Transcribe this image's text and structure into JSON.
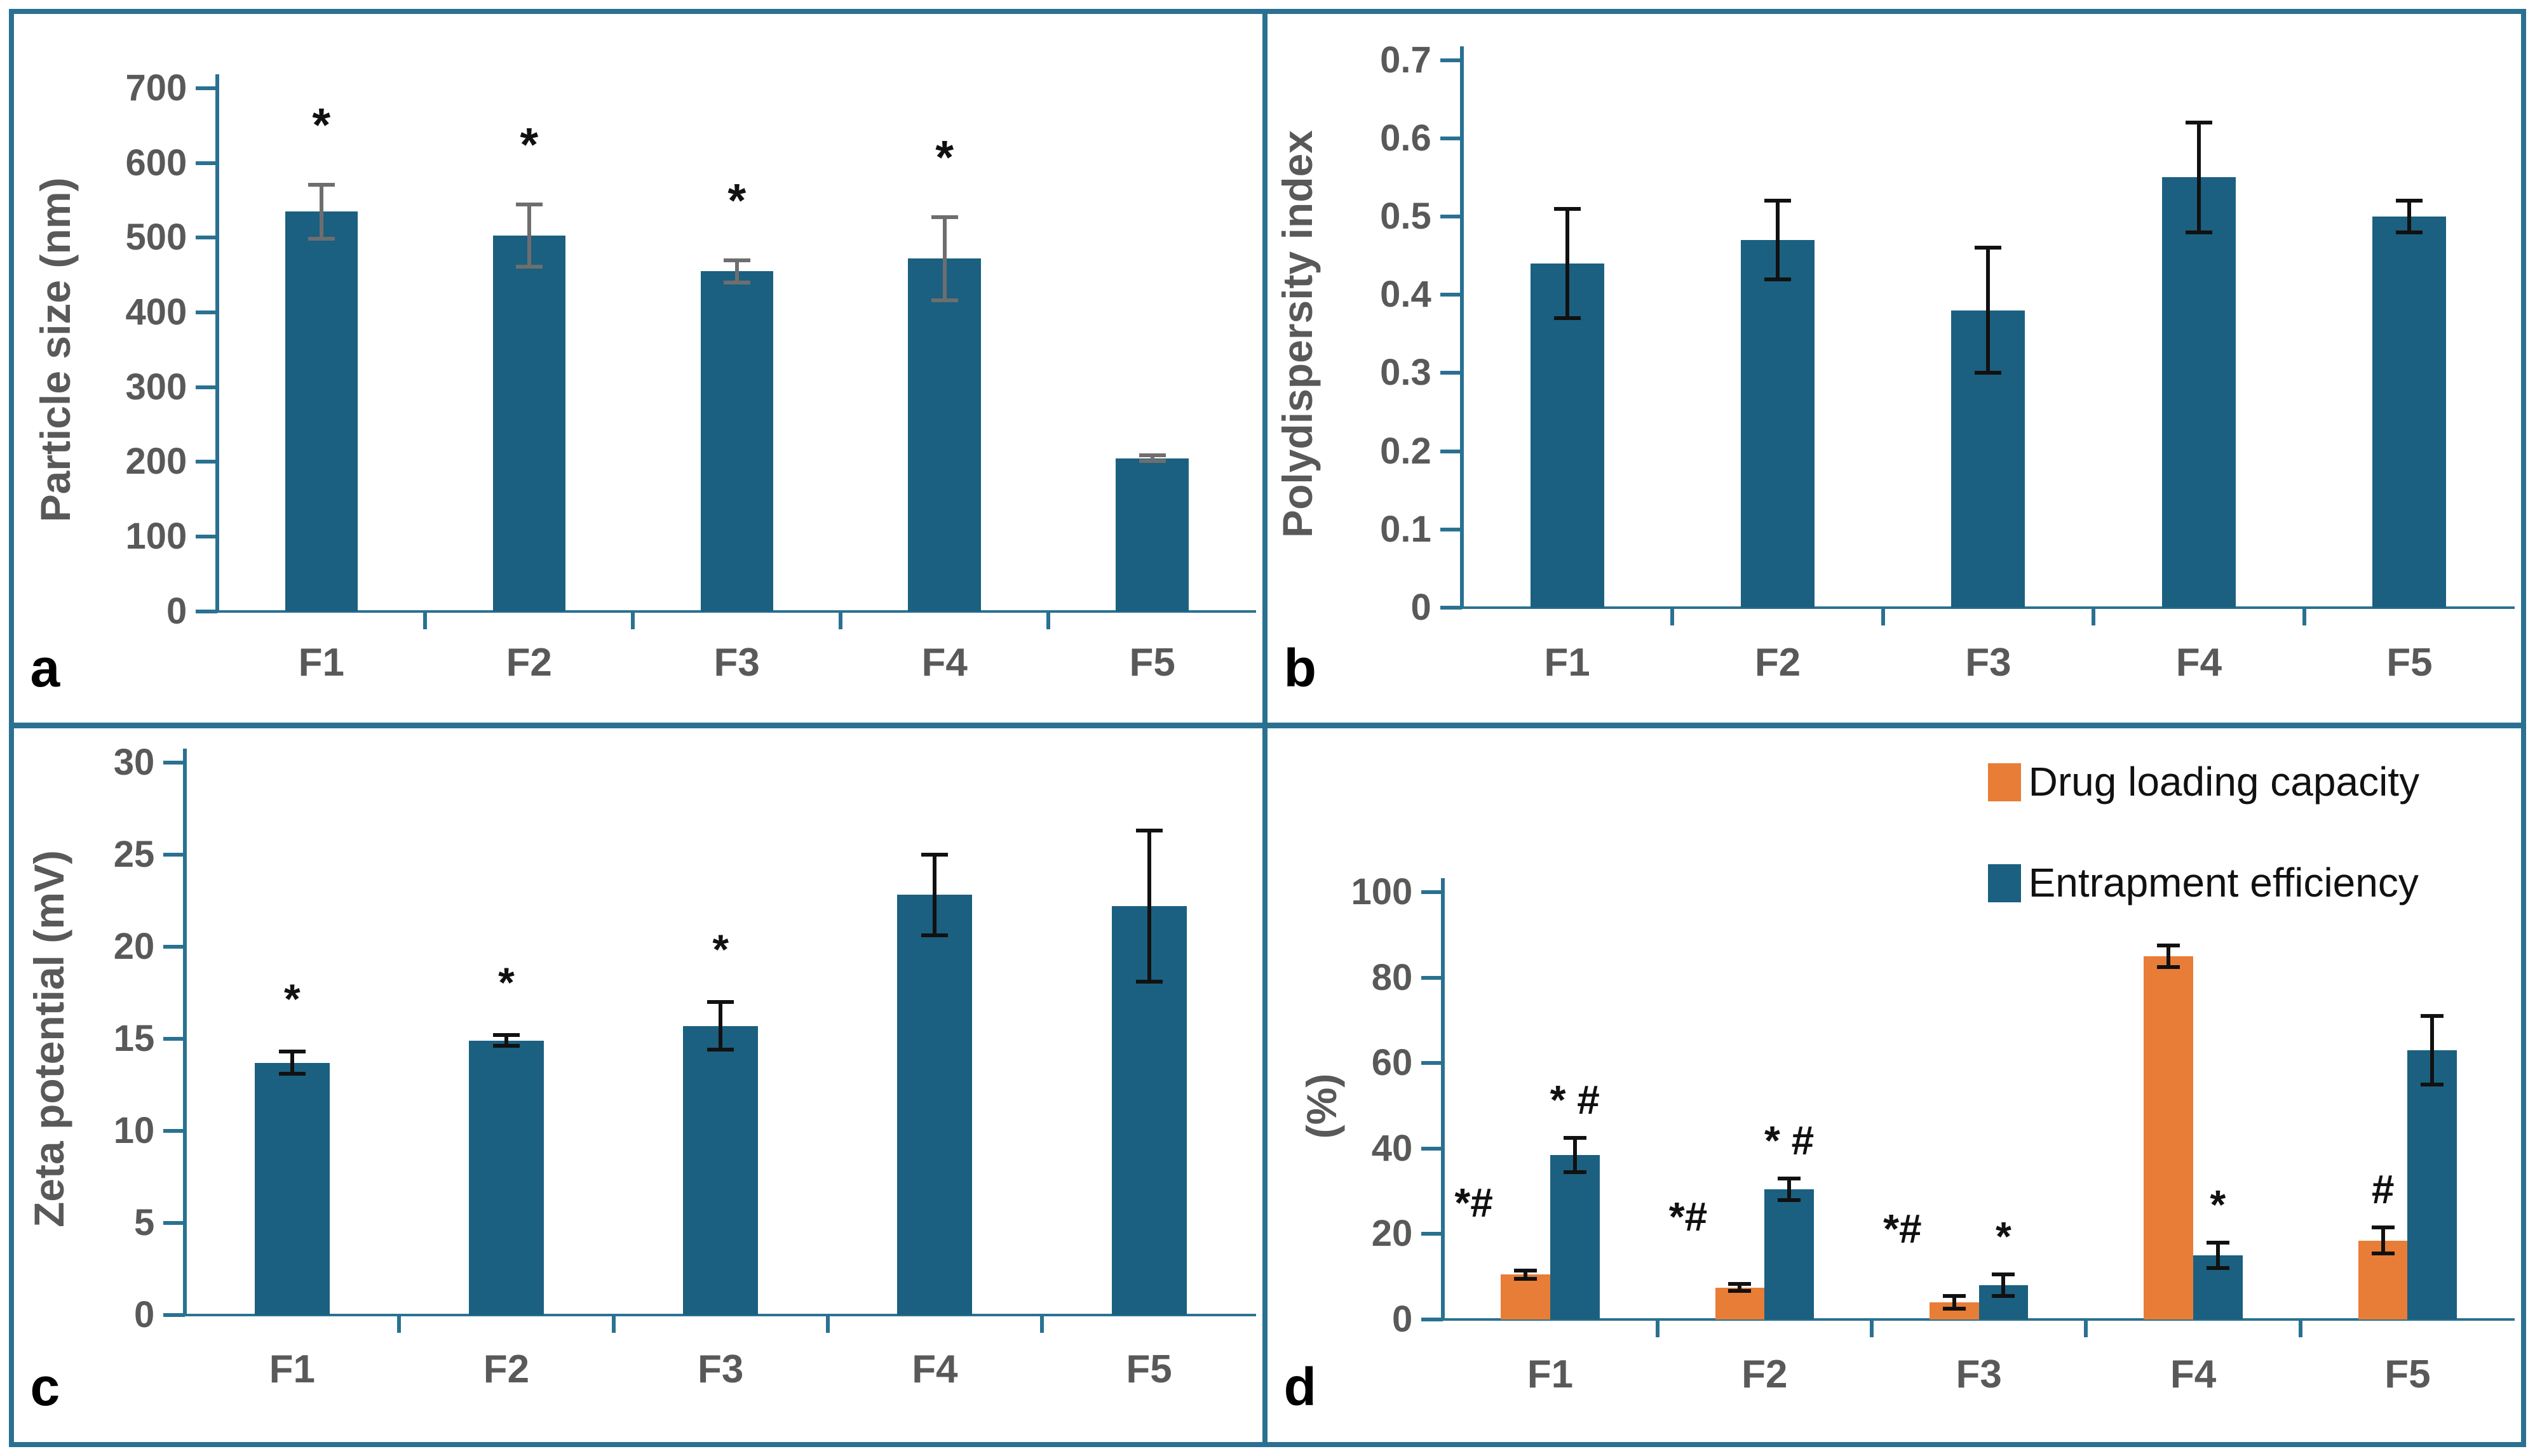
{
  "figure": {
    "border_color": "#2a7191",
    "background": "#ffffff",
    "axis_color": "#2a7191",
    "label_color": "#595959",
    "annotation_color": "#111111",
    "panel_letters": [
      "a",
      "b",
      "c",
      "d"
    ]
  },
  "chart_data": [
    {
      "letter": "a",
      "type": "bar",
      "ylabel": "Particle size (nm)",
      "categories": [
        "F1",
        "F2",
        "F3",
        "F4",
        "F5"
      ],
      "ylim": [
        0,
        700
      ],
      "yticks": [
        "0",
        "100",
        "200",
        "300",
        "400",
        "500",
        "600",
        "700"
      ],
      "grid": false,
      "series": [
        {
          "name": "Particle size",
          "color": "#1b6080",
          "values": [
            535,
            503,
            455,
            472,
            205
          ],
          "errors": [
            36,
            42,
            15,
            56,
            4
          ],
          "annotations": [
            "*",
            "*",
            "*",
            "*",
            ""
          ],
          "ann_align": [
            "center",
            "center",
            "center",
            "center",
            "center"
          ]
        }
      ],
      "error_color": "#6e6e6e"
    },
    {
      "letter": "b",
      "type": "bar",
      "ylabel": "Polydispersity index",
      "categories": [
        "F1",
        "F2",
        "F3",
        "F4",
        "F5"
      ],
      "ylim": [
        0,
        0.7
      ],
      "yticks": [
        "0",
        "0.1",
        "0.2",
        "0.3",
        "0.4",
        "0.5",
        "0.6",
        "0.7"
      ],
      "grid": false,
      "series": [
        {
          "name": "Polydispersity index",
          "color": "#1b6080",
          "values": [
            0.44,
            0.47,
            0.38,
            0.55,
            0.5
          ],
          "errors": [
            0.07,
            0.05,
            0.08,
            0.07,
            0.02
          ],
          "annotations": [
            "",
            "",
            "",
            "",
            ""
          ],
          "ann_align": [
            "center",
            "center",
            "center",
            "center",
            "center"
          ]
        }
      ],
      "error_color": "#111111"
    },
    {
      "letter": "c",
      "type": "bar",
      "ylabel": "Zeta potential (mV)",
      "categories": [
        "F1",
        "F2",
        "F3",
        "F4",
        "F5"
      ],
      "ylim": [
        0,
        30
      ],
      "yticks": [
        "0",
        "5",
        "10",
        "15",
        "20",
        "25",
        "30"
      ],
      "grid": false,
      "series": [
        {
          "name": "Zeta potential",
          "color": "#1b6080",
          "values": [
            13.7,
            14.9,
            15.7,
            22.8,
            22.2
          ],
          "errors": [
            0.6,
            0.3,
            1.3,
            2.2,
            4.1
          ],
          "annotations": [
            "*",
            "*",
            "*",
            "",
            ""
          ],
          "ann_align": [
            "center",
            "center",
            "center",
            "center",
            "center"
          ]
        }
      ],
      "error_color": "#111111"
    },
    {
      "letter": "d",
      "type": "grouped-bar",
      "ylabel": "(%)",
      "categories": [
        "F1",
        "F2",
        "F3",
        "F4",
        "F5"
      ],
      "ylim": [
        0,
        100
      ],
      "yticks": [
        "0",
        "20",
        "40",
        "60",
        "80",
        "100"
      ],
      "grid": false,
      "legend_position": "top-right",
      "series": [
        {
          "name": "Drug loading capacity",
          "color": "#e87d37",
          "values": [
            10.5,
            7.5,
            4,
            85,
            18.5
          ],
          "errors": [
            1,
            0.8,
            1.5,
            2.5,
            3
          ],
          "annotations": [
            "*#",
            "*#",
            "*#",
            "",
            "#"
          ],
          "ann_align": [
            "left",
            "left",
            "left",
            "center",
            "center"
          ]
        },
        {
          "name": "Entrapment efficiency",
          "color": "#1b6080",
          "values": [
            38.5,
            30.5,
            8,
            15,
            63
          ],
          "errors": [
            4,
            2.5,
            2.5,
            3,
            8
          ],
          "annotations": [
            "* #",
            "* #",
            "*",
            "*",
            ""
          ],
          "ann_align": [
            "center",
            "center",
            "center",
            "center",
            "center"
          ]
        }
      ],
      "error_color": "#111111",
      "legend": {
        "items": [
          {
            "label": "Drug loading capacity",
            "color": "#e87d37"
          },
          {
            "label": "Entrapment efficiency",
            "color": "#1b6080"
          }
        ]
      }
    }
  ]
}
